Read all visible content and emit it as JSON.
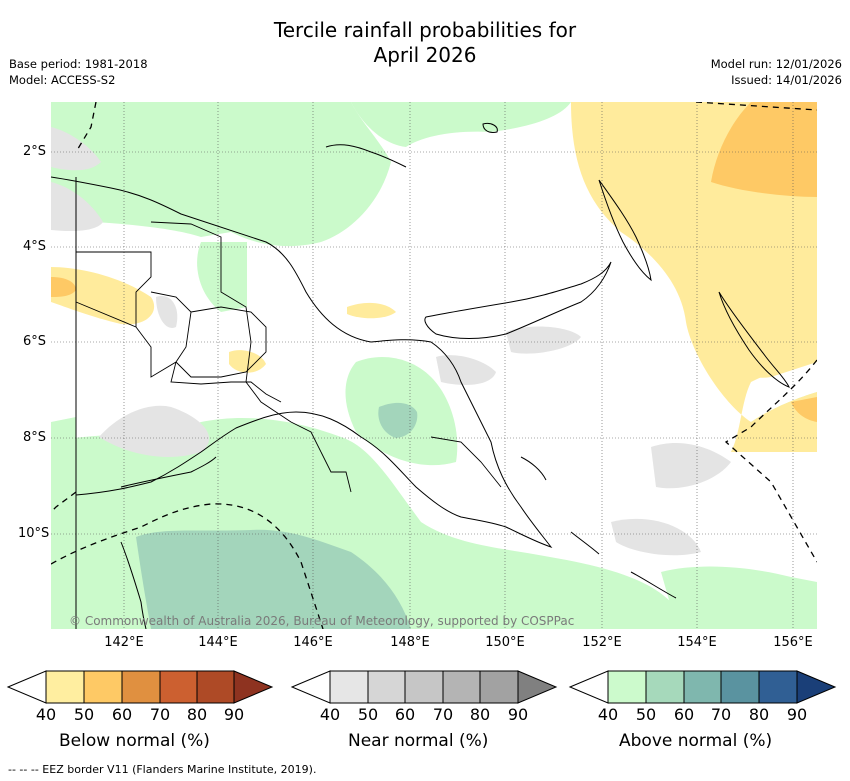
{
  "title_line1": "Tercile rainfall probabilities for",
  "title_line2": "April 2026",
  "meta": {
    "base_period": "Base period: 1981-2018",
    "model": "Model: ACCESS-S2",
    "model_run": "Model run: 12/01/2026",
    "issued": "Issued: 14/01/2026"
  },
  "map": {
    "lat_labels": [
      "2°S",
      "4°S",
      "6°S",
      "8°S",
      "10°S"
    ],
    "lon_labels": [
      "142°E",
      "144°E",
      "146°E",
      "148°E",
      "150°E",
      "152°E",
      "154°E",
      "156°E"
    ],
    "copyright": "© Commonwealth of Australia 2026, Bureau of Meteorology, supported by COSPPac",
    "colors": {
      "below_50": "#ffeb9c",
      "below_60": "#fec965",
      "near_40": "#e6e6e6",
      "above_50": "#cbfacb",
      "above_60": "#a3d5bb",
      "land_border": "#000000"
    }
  },
  "colorbars": {
    "ticks": [
      "40",
      "50",
      "60",
      "70",
      "80",
      "90"
    ],
    "below": {
      "label": "Below normal (%)",
      "colors": [
        "#ffeea0",
        "#fec965",
        "#e09040",
        "#cc6030",
        "#ae4a26",
        "#8e3320"
      ]
    },
    "near": {
      "label": "Near normal (%)",
      "colors": [
        "#e6e6e6",
        "#d6d6d6",
        "#c6c6c6",
        "#b4b4b4",
        "#a2a2a2",
        "#808080"
      ]
    },
    "above": {
      "label": "Above normal (%)",
      "colors": [
        "#ccfacc",
        "#a6d9bb",
        "#7fb7ae",
        "#5a93a0",
        "#305f94",
        "#1a3f78"
      ]
    }
  },
  "footnote": "--  --  -- EEZ border V11 (Flanders Marine Institute, 2019)."
}
